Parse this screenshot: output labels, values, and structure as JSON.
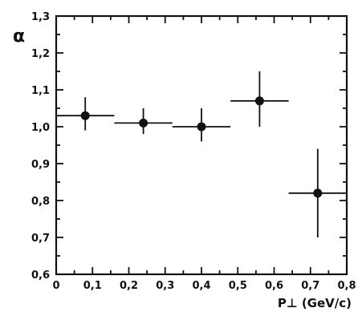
{
  "chart_data": {
    "type": "scatter",
    "title": "",
    "xlabel": "P⊥ (GeV/c)",
    "ylabel": "α",
    "xlim": [
      0,
      0.8
    ],
    "ylim": [
      0.6,
      1.3
    ],
    "xticks": [
      0,
      0.1,
      0.2,
      0.3,
      0.4,
      0.5,
      0.6,
      0.7,
      0.8
    ],
    "xtick_labels": [
      "0",
      "0,1",
      "0,2",
      "0,3",
      "0,4",
      "0,5",
      "0,6",
      "0,7",
      "0,8"
    ],
    "yticks": [
      0.6,
      0.7,
      0.8,
      0.9,
      1.0,
      1.1,
      1.2,
      1.3
    ],
    "ytick_labels": [
      "0,6",
      "0,7",
      "0,8",
      "0,9",
      "1,0",
      "1,1",
      "1,2",
      "1,3"
    ],
    "grid": false,
    "legend": "none",
    "marker_color": "#111111",
    "series": [
      {
        "points": [
          {
            "x": 0.08,
            "y": 1.03,
            "x_lo": 0.0,
            "x_hi": 0.16,
            "y_lo": 0.99,
            "y_hi": 1.08
          },
          {
            "x": 0.24,
            "y": 1.01,
            "x_lo": 0.16,
            "x_hi": 0.32,
            "y_lo": 0.98,
            "y_hi": 1.05
          },
          {
            "x": 0.4,
            "y": 1.0,
            "x_lo": 0.32,
            "x_hi": 0.48,
            "y_lo": 0.96,
            "y_hi": 1.05
          },
          {
            "x": 0.56,
            "y": 1.07,
            "x_lo": 0.48,
            "x_hi": 0.64,
            "y_lo": 1.0,
            "y_hi": 1.15
          },
          {
            "x": 0.72,
            "y": 0.82,
            "x_lo": 0.64,
            "x_hi": 0.8,
            "y_lo": 0.7,
            "y_hi": 0.94
          }
        ]
      }
    ]
  }
}
